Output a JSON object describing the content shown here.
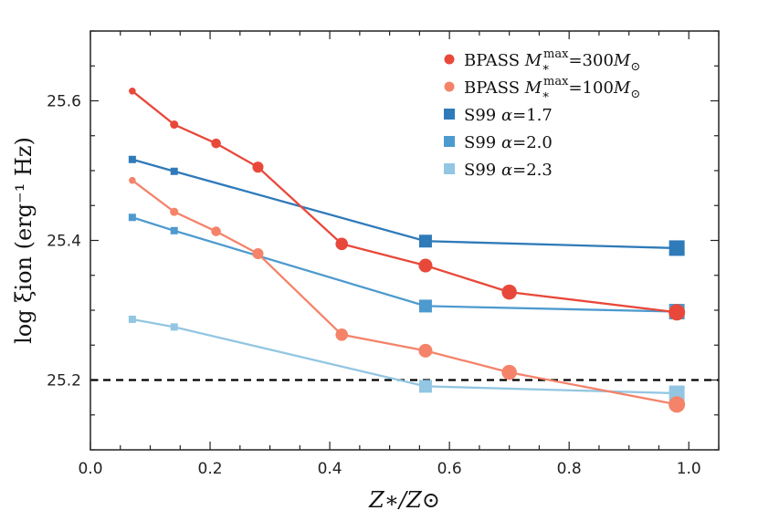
{
  "chart_data": {
    "type": "line",
    "title": "",
    "xlabel": "Z∗/Z⊙",
    "ylabel": "log ξion (erg⁻¹ Hz)",
    "xlim": [
      0.0,
      1.05
    ],
    "ylim": [
      25.1,
      25.7
    ],
    "x_ticks": [
      "0.0",
      "0.2",
      "0.4",
      "0.6",
      "0.8",
      "1.0"
    ],
    "y_ticks": [
      "25.2",
      "25.4",
      "25.6"
    ],
    "reference_line": {
      "y": 25.2,
      "style": "dashed",
      "color": "#000000"
    },
    "legend_position": "top-right",
    "series": [
      {
        "name": "BPASS M∗max=300M⊙",
        "legend_parts": [
          "BPASS ",
          "M",
          "∗",
          "max",
          "=300",
          "M",
          "⊙"
        ],
        "color": "#e8483a",
        "marker": "circle",
        "x": [
          0.07,
          0.14,
          0.21,
          0.28,
          0.42,
          0.56,
          0.7,
          0.98
        ],
        "y": [
          25.614,
          25.566,
          25.539,
          25.505,
          25.395,
          25.364,
          25.326,
          25.297
        ]
      },
      {
        "name": "BPASS M∗max=100M⊙",
        "legend_parts": [
          "BPASS ",
          "M",
          "∗",
          "max",
          "=100",
          "M",
          "⊙"
        ],
        "color": "#f4836a",
        "marker": "circle",
        "x": [
          0.07,
          0.14,
          0.21,
          0.28,
          0.42,
          0.56,
          0.7,
          0.98
        ],
        "y": [
          25.486,
          25.441,
          25.413,
          25.381,
          25.265,
          25.242,
          25.211,
          25.165
        ]
      },
      {
        "name": "S99 α=1.7",
        "legend_parts": [
          "S99 ",
          "α",
          "=1.7"
        ],
        "color": "#2f7ab9",
        "marker": "square",
        "x": [
          0.07,
          0.14,
          0.56,
          0.98
        ],
        "y": [
          25.516,
          25.499,
          25.399,
          25.389
        ]
      },
      {
        "name": "S99 α=2.0",
        "legend_parts": [
          "S99 ",
          "α",
          "=2.0"
        ],
        "color": "#4d9acf",
        "marker": "square",
        "x": [
          0.07,
          0.14,
          0.56,
          0.98
        ],
        "y": [
          25.433,
          25.414,
          25.306,
          25.298
        ]
      },
      {
        "name": "S99 α=2.3",
        "legend_parts": [
          "S99 ",
          "α",
          "=2.3"
        ],
        "color": "#93c6e2",
        "marker": "square",
        "x": [
          0.07,
          0.14,
          0.56,
          0.98
        ],
        "y": [
          25.287,
          25.276,
          25.191,
          25.181
        ]
      }
    ]
  }
}
